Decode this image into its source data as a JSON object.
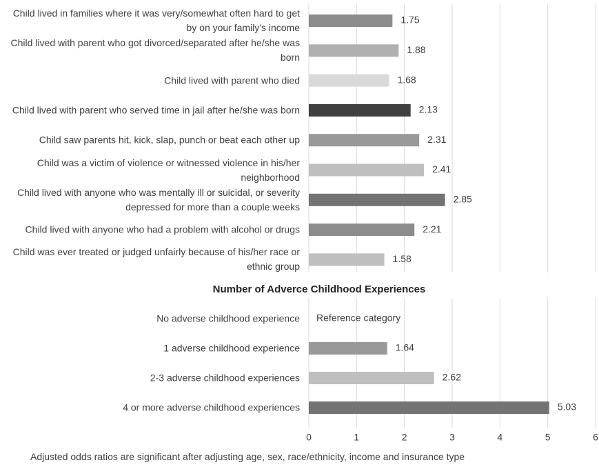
{
  "chart_data": [
    {
      "type": "bar",
      "orientation": "horizontal",
      "categories": [
        "Child lived in families where it was very/somewhat often hard to get by on your family's income",
        "Child lived with parent who got divorced/separated after he/she was born",
        "Child lived with parent who died",
        "Child lived with parent who served time in jail after he/she was born",
        "Child saw parents hit, kick, slap, punch or beat each other up",
        "Child was a victim of violence or witnessed violence in his/her neighborhood",
        "Child lived with anyone who was mentally ill or suicidal, or severity depressed for more than a couple weeks",
        "Child lived with anyone who had a problem with alcohol or drugs",
        "Child was ever treated or judged unfairly because of his/her race or ethnic group"
      ],
      "values": [
        1.75,
        1.88,
        1.68,
        2.13,
        2.31,
        2.41,
        2.85,
        2.21,
        1.58
      ],
      "colors": [
        "#8c8c8c",
        "#b0b0b0",
        "#d9d9d9",
        "#404040",
        "#999999",
        "#bfbfbf",
        "#737373",
        "#8c8c8c",
        "#bfbfbf"
      ],
      "xlim": [
        0,
        6
      ],
      "xticks": [
        0,
        1,
        2,
        3,
        4,
        5,
        6
      ],
      "grid": true
    },
    {
      "type": "bar",
      "orientation": "horizontal",
      "title": "Number of Adverce Childhood Experiences",
      "categories": [
        "No adverse childhood experience",
        "1 adverse childhood experience",
        "2-3 adverse childhood experiences",
        "4 or more adverse childhood experiences"
      ],
      "values": [
        null,
        1.64,
        2.62,
        5.03
      ],
      "annotation": "Reference category",
      "colors": [
        "#999999",
        "#999999",
        "#bfbfbf",
        "#737373"
      ],
      "xlim": [
        0,
        6
      ],
      "xticks": [
        0,
        1,
        2,
        3,
        4,
        5,
        6
      ],
      "grid": true
    }
  ],
  "caption": "Adjusted odds ratios are significant after adjusting age, sex, race/ethnicity, income and insurance type"
}
